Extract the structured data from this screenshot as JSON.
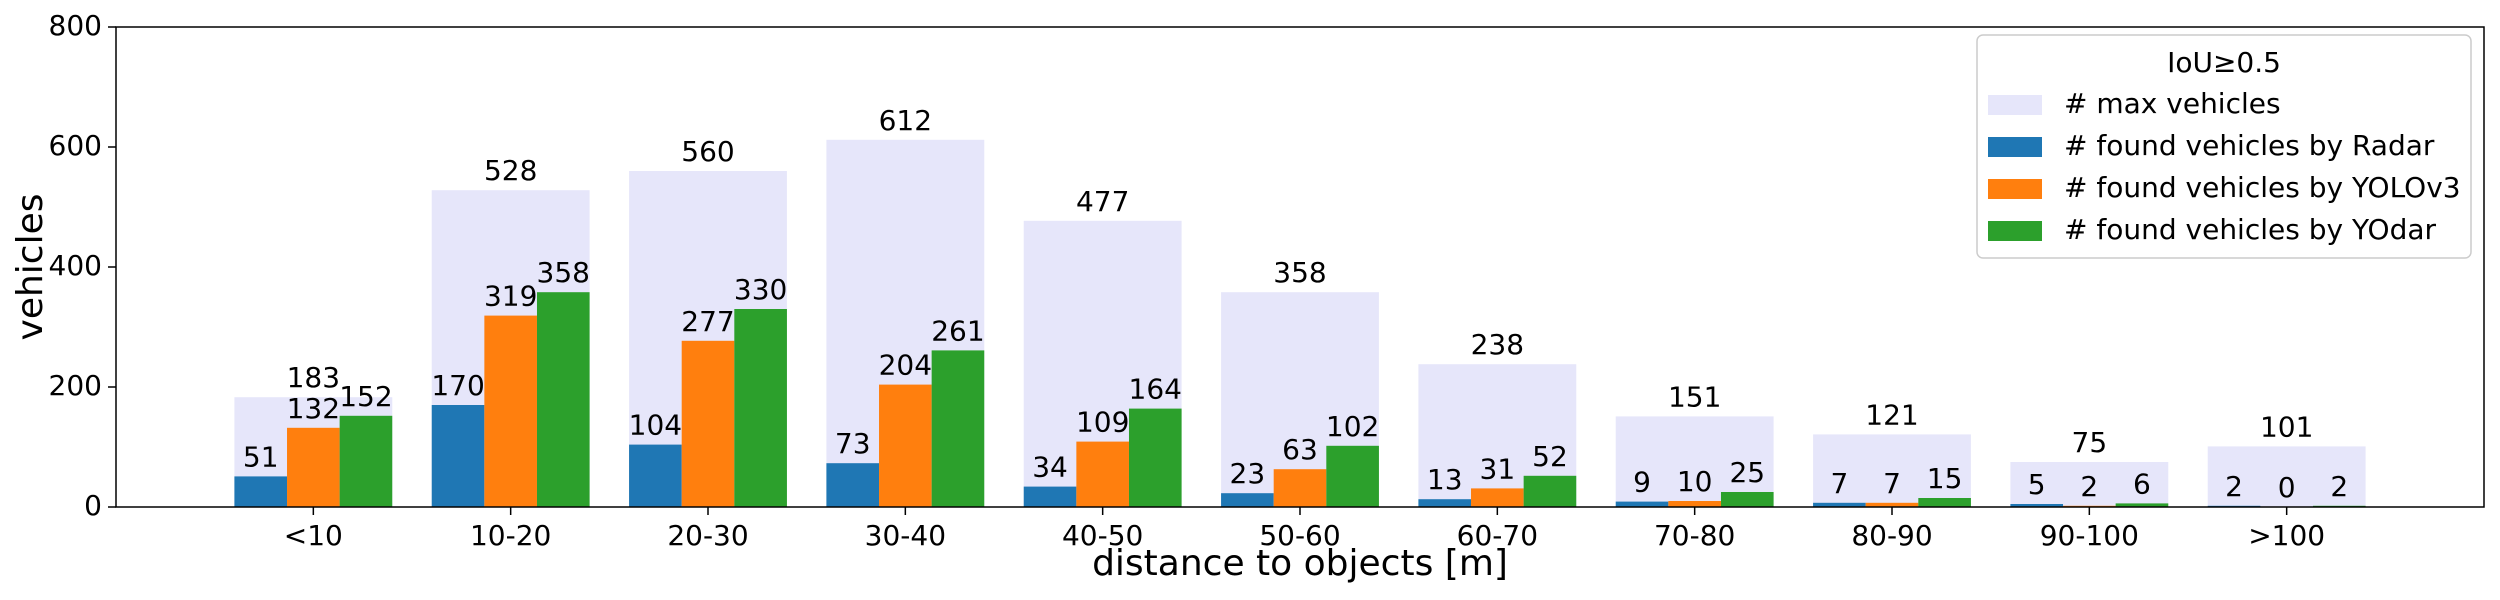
{
  "chart_data": {
    "type": "bar",
    "xlabel": "distance to objects [m]",
    "ylabel": "vehicles",
    "categories": [
      "<10",
      "10-20",
      "20-30",
      "30-40",
      "40-50",
      "50-60",
      "60-70",
      "70-80",
      "80-90",
      "90-100",
      ">100"
    ],
    "series": [
      {
        "name": "# max vehicles",
        "color": "#e6e6fa",
        "values": [
          183,
          528,
          560,
          612,
          477,
          358,
          238,
          151,
          121,
          75,
          101
        ]
      },
      {
        "name": "# found vehicles by Radar",
        "color": "#1f77b4",
        "values": [
          51,
          170,
          104,
          73,
          34,
          23,
          13,
          9,
          7,
          5,
          2
        ]
      },
      {
        "name": "# found vehicles by YOLOv3",
        "color": "#ff7f0e",
        "values": [
          132,
          319,
          277,
          204,
          109,
          63,
          31,
          10,
          7,
          2,
          0
        ]
      },
      {
        "name": "# found vehicles by YOdar",
        "color": "#2ca02c",
        "values": [
          152,
          358,
          330,
          261,
          164,
          102,
          52,
          25,
          15,
          6,
          2
        ]
      }
    ],
    "ylim": [
      0,
      800
    ],
    "yticks": [
      0,
      200,
      400,
      600,
      800
    ],
    "legend": {
      "title": "IoU≥0.5",
      "position": "upper right"
    }
  }
}
